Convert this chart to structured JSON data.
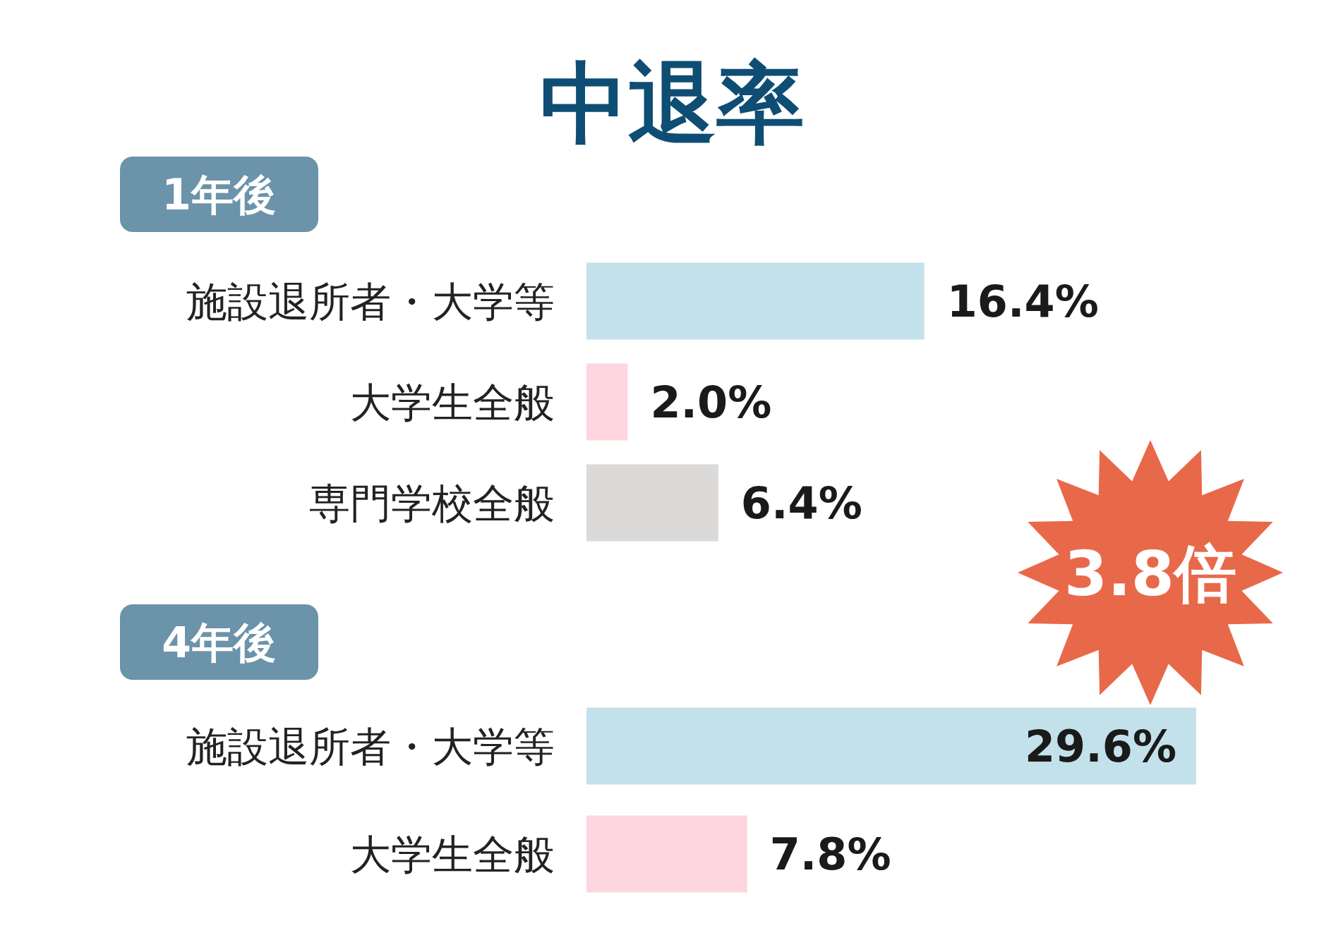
{
  "chart_data": [
    {
      "type": "bar",
      "orientation": "horizontal",
      "title": "中退率",
      "subtitle": "1年後",
      "categories": [
        "施設退所者・大学等",
        "大学生全般",
        "専門学校全般"
      ],
      "values": [
        16.4,
        2.0,
        6.4
      ],
      "colors": [
        "#c3e1ea",
        "#fdd6df",
        "#dcd9d9"
      ],
      "value_labels": [
        "16.4%",
        "2.0%",
        "6.4%"
      ]
    },
    {
      "type": "bar",
      "orientation": "horizontal",
      "title": "4年後",
      "categories": [
        "施設退所者・大学等",
        "大学生全般"
      ],
      "values": [
        29.6,
        7.8
      ],
      "colors": [
        "#c3e1ea",
        "#fdd6df"
      ],
      "value_labels": [
        "29.6%",
        "7.8%"
      ],
      "annotations": [
        "3.8倍"
      ]
    }
  ]
}
